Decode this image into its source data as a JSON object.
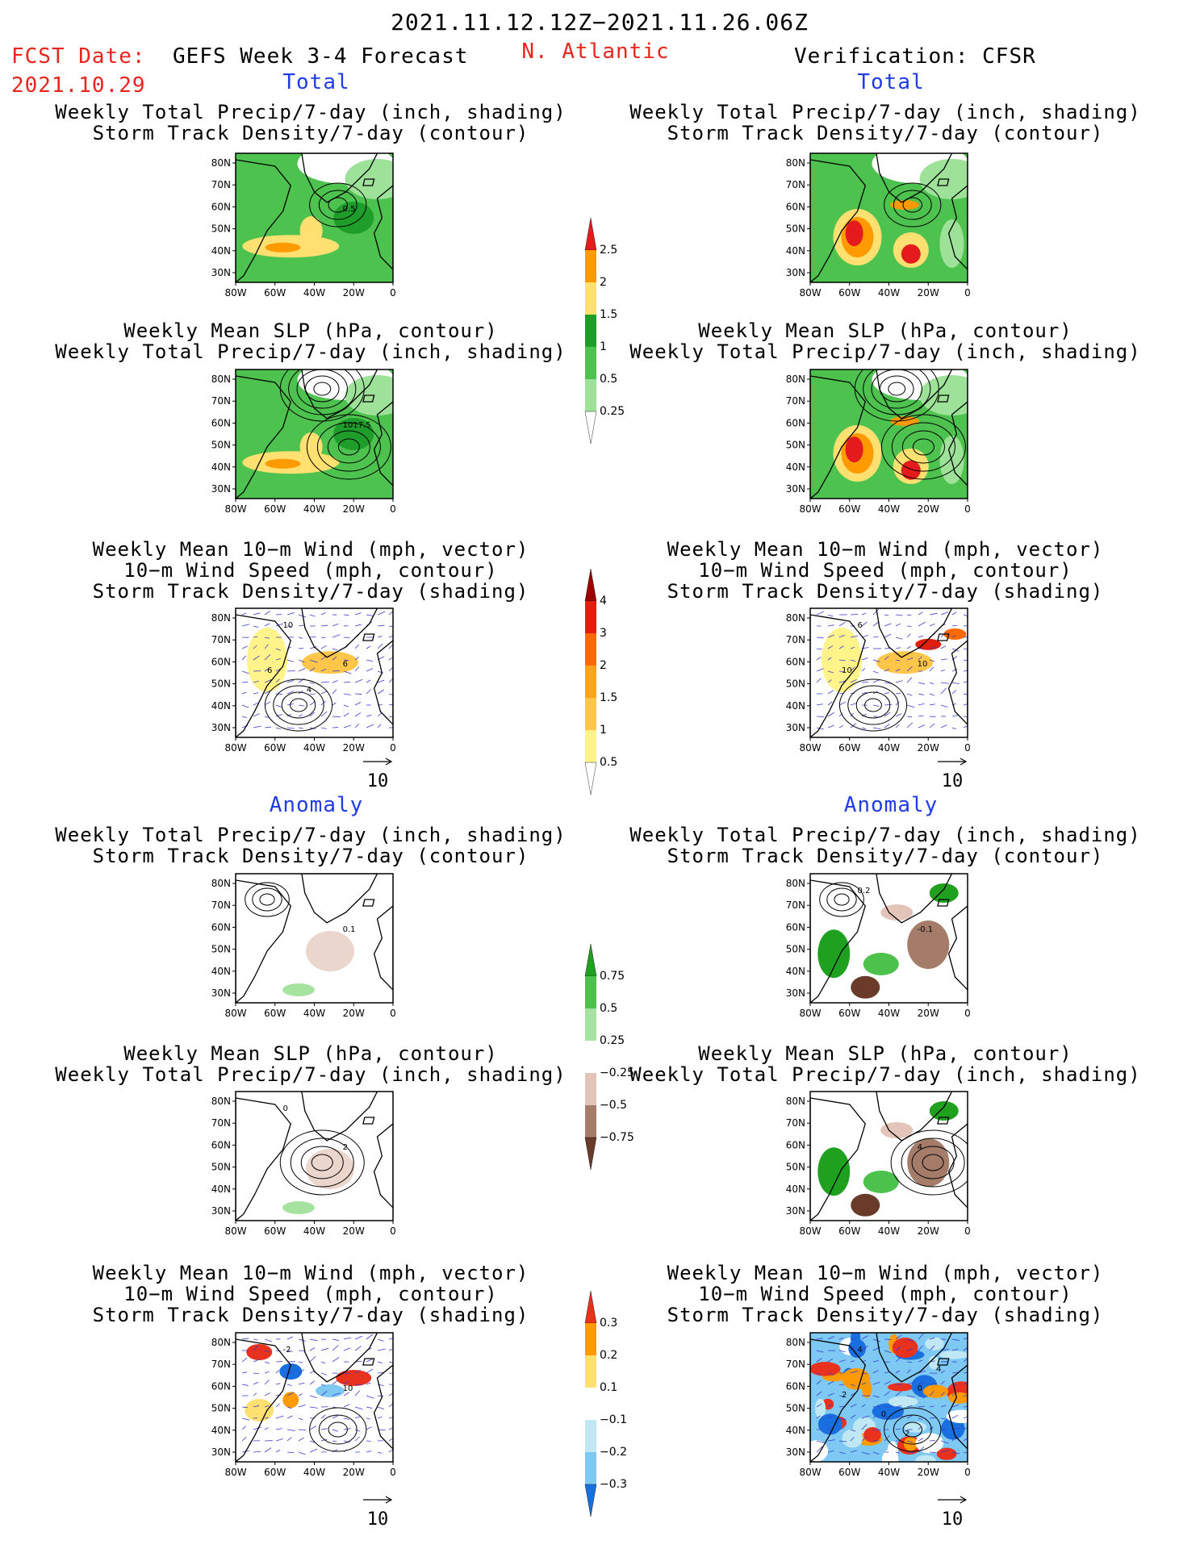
{
  "header": {
    "period": "2021.11.12.12Z−2021.11.26.06Z",
    "fcst_label": "FCST Date:",
    "fcst_date": "2021.10.29",
    "model": "GEFS Week 3-4 Forecast",
    "region": "N. Atlantic",
    "verification": "Verification: CFSR"
  },
  "sections": {
    "total": "Total",
    "anomaly": "Anomaly"
  },
  "titles": {
    "precip_storm": [
      "Weekly Total Precip/7-day (inch, shading)",
      "Storm Track Density/7-day (contour)"
    ],
    "slp_precip": [
      "Weekly Mean SLP (hPa, contour)",
      "Weekly Total Precip/7-day (inch, shading)"
    ],
    "wind": [
      "Weekly Mean 10−m Wind (mph, vector)",
      "10−m Wind Speed (mph, contour)",
      "Storm Track Density/7-day (shading)"
    ]
  },
  "axes": {
    "lat_ticks": [
      "80N",
      "70N",
      "60N",
      "50N",
      "40N",
      "30N"
    ],
    "lon_ticks": [
      "80W",
      "60W",
      "40W",
      "20W",
      "0"
    ]
  },
  "vector_ref": "10",
  "panel_labels": {
    "gefs_total_precip": "0.5",
    "gefs_total_slp": "1017.5",
    "gefs_total_wind": [
      "6",
      "10",
      "6",
      "4"
    ],
    "cfsr_total_wind": [
      "10",
      "6",
      "10"
    ],
    "gefs_anom_precip": "0.1",
    "cfsr_anom_precip": [
      "-0.1",
      "0.2"
    ],
    "gefs_anom_slp": [
      "2",
      "0"
    ],
    "cfsr_anom_slp": [
      "4"
    ],
    "gefs_anom_wind": [
      "10",
      "-2"
    ],
    "cfsr_anom_wind": [
      "0",
      "4",
      "2",
      "0",
      "2",
      "4"
    ]
  },
  "colorbars": {
    "precip_total": {
      "labels": [
        "2.5",
        "2",
        "1.5",
        "1",
        "0.5",
        "0.25"
      ],
      "colors": [
        "#e41a1c",
        "#ff9a00",
        "#ffe070",
        "#1f9d2a",
        "#4ec24e",
        "#9ee29a",
        "#ffffff"
      ]
    },
    "storm_total": {
      "labels": [
        "4",
        "3",
        "2",
        "1.5",
        "1",
        "0.5"
      ],
      "colors": [
        "#9c0000",
        "#e11d0d",
        "#ff6a00",
        "#ffa41a",
        "#ffc64a",
        "#fff38a",
        "#ffffff"
      ]
    },
    "precip_anom": {
      "labels": [
        "0.75",
        "0.5",
        "0.25",
        "−0.25",
        "−0.5",
        "−0.75"
      ],
      "colors": [
        "#1fa11f",
        "#4cc24c",
        "#a6e3a0",
        "#ffffff",
        "#e3c4b8",
        "#a57b6a",
        "#6b3b2a"
      ]
    },
    "storm_anom": {
      "labels": [
        "0.3",
        "0.2",
        "0.1",
        "−0.1",
        "−0.2",
        "−0.3"
      ],
      "colors": [
        "#e8321e",
        "#ff9a00",
        "#ffe070",
        "#ffffff",
        "#bfe8f4",
        "#7ec8f4",
        "#1a6fe0"
      ]
    }
  },
  "chart_data": [
    {
      "type": "heatmap",
      "title": "Weekly Total Precip/7-day (inch, shading)",
      "subtitle": "Storm Track Density/7-day (contour)",
      "xlabel": "",
      "ylabel": "",
      "xlim": [
        "80W",
        "0"
      ],
      "ylim": [
        "25N",
        "85N"
      ],
      "source": "GEFS",
      "section": "Total",
      "contour_label": "0.5"
    },
    {
      "type": "heatmap",
      "title": "Weekly Total Precip/7-day (inch, shading)",
      "subtitle": "Storm Track Density/7-day (contour)",
      "xlim": [
        "80W",
        "0"
      ],
      "ylim": [
        "25N",
        "85N"
      ],
      "source": "CFSR",
      "section": "Total"
    },
    {
      "type": "heatmap",
      "title": "Weekly Mean SLP (hPa, contour)",
      "subtitle": "Weekly Total Precip/7-day (inch, shading)",
      "xlim": [
        "80W",
        "0"
      ],
      "ylim": [
        "25N",
        "85N"
      ],
      "source": "GEFS",
      "section": "Total",
      "contour_label": "1017.5"
    },
    {
      "type": "heatmap",
      "title": "Weekly Mean SLP (hPa, contour)",
      "subtitle": "Weekly Total Precip/7-day (inch, shading)",
      "xlim": [
        "80W",
        "0"
      ],
      "ylim": [
        "25N",
        "85N"
      ],
      "source": "CFSR",
      "section": "Total"
    },
    {
      "type": "heatmap",
      "title": "Weekly Mean 10-m Wind (mph, vector)",
      "subtitle": "10-m Wind Speed (mph, contour); Storm Track Density/7-day (shading)",
      "xlim": [
        "80W",
        "0"
      ],
      "ylim": [
        "25N",
        "85N"
      ],
      "source": "GEFS",
      "section": "Total",
      "vector_ref": "10"
    },
    {
      "type": "heatmap",
      "title": "Weekly Mean 10-m Wind (mph, vector)",
      "subtitle": "10-m Wind Speed (mph, contour); Storm Track Density/7-day (shading)",
      "xlim": [
        "80W",
        "0"
      ],
      "ylim": [
        "25N",
        "85N"
      ],
      "source": "CFSR",
      "section": "Total",
      "vector_ref": "10"
    },
    {
      "type": "heatmap",
      "title": "Weekly Total Precip/7-day (inch, shading)",
      "subtitle": "Storm Track Density/7-day (contour)",
      "xlim": [
        "80W",
        "0"
      ],
      "ylim": [
        "25N",
        "85N"
      ],
      "source": "GEFS",
      "section": "Anomaly"
    },
    {
      "type": "heatmap",
      "title": "Weekly Total Precip/7-day (inch, shading)",
      "subtitle": "Storm Track Density/7-day (contour)",
      "xlim": [
        "80W",
        "0"
      ],
      "ylim": [
        "25N",
        "85N"
      ],
      "source": "CFSR",
      "section": "Anomaly"
    },
    {
      "type": "heatmap",
      "title": "Weekly Mean SLP (hPa, contour)",
      "subtitle": "Weekly Total Precip/7-day (inch, shading)",
      "xlim": [
        "80W",
        "0"
      ],
      "ylim": [
        "25N",
        "85N"
      ],
      "source": "GEFS",
      "section": "Anomaly"
    },
    {
      "type": "heatmap",
      "title": "Weekly Mean SLP (hPa, contour)",
      "subtitle": "Weekly Total Precip/7-day (inch, shading)",
      "xlim": [
        "80W",
        "0"
      ],
      "ylim": [
        "25N",
        "85N"
      ],
      "source": "CFSR",
      "section": "Anomaly"
    },
    {
      "type": "heatmap",
      "title": "Weekly Mean 10-m Wind (mph, vector)",
      "subtitle": "10-m Wind Speed (mph, contour); Storm Track Density/7-day (shading)",
      "xlim": [
        "80W",
        "0"
      ],
      "ylim": [
        "25N",
        "85N"
      ],
      "source": "GEFS",
      "section": "Anomaly",
      "vector_ref": "10"
    },
    {
      "type": "heatmap",
      "title": "Weekly Mean 10-m Wind (mph, vector)",
      "subtitle": "10-m Wind Speed (mph, contour); Storm Track Density/7-day (shading)",
      "xlim": [
        "80W",
        "0"
      ],
      "ylim": [
        "25N",
        "85N"
      ],
      "source": "CFSR",
      "section": "Anomaly",
      "vector_ref": "10"
    }
  ]
}
